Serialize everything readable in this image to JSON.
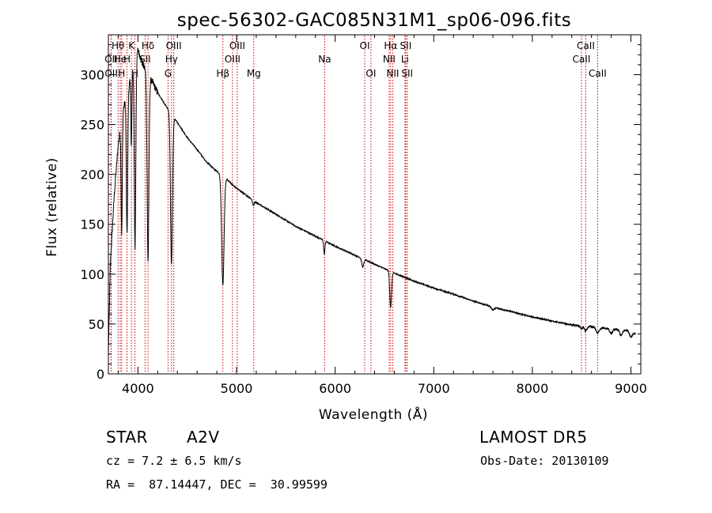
{
  "chart_data": {
    "type": "line",
    "title": "spec-56302-GAC085N31M1_sp06-096.fits",
    "xlabel": "Wavelength (Å)",
    "ylabel": "Flux (relative)",
    "xlim": [
      3700,
      9100
    ],
    "ylim": [
      0,
      340
    ],
    "x_ticks": [
      4000,
      5000,
      6000,
      7000,
      8000,
      9000
    ],
    "x_tick_labels": [
      "4000",
      "5000",
      "6000",
      "7000",
      "8000",
      "9000"
    ],
    "y_ticks": [
      0,
      50,
      100,
      150,
      200,
      250,
      300
    ],
    "y_tick_labels": [
      "0",
      "50",
      "100",
      "150",
      "200",
      "250",
      "300"
    ],
    "grid": false,
    "line_color": "#000000",
    "marker_color": "#cc0000",
    "continuum": {
      "x": [
        3700,
        3720,
        3760,
        3800,
        3850,
        3900,
        3950,
        4000,
        4050,
        4100,
        4150,
        4200,
        4300,
        4400,
        4500,
        4600,
        4700,
        4800,
        4900,
        5000,
        5200,
        5400,
        5600,
        5800,
        6000,
        6200,
        6400,
        6600,
        6800,
        7000,
        7200,
        7400,
        7600,
        7800,
        8000,
        8200,
        8400,
        8600,
        8800,
        9000,
        9050
      ],
      "y": [
        60,
        110,
        180,
        230,
        265,
        285,
        310,
        325,
        310,
        300,
        292,
        282,
        266,
        252,
        237,
        225,
        212,
        203,
        195,
        186,
        172,
        160,
        148,
        138,
        128,
        119,
        110,
        101,
        93,
        86,
        80,
        73,
        67,
        62,
        57,
        53,
        49,
        47,
        45,
        43,
        40
      ]
    },
    "absorption_lines": [
      {
        "x": 3835,
        "depth": 0.45,
        "width": 6
      },
      {
        "x": 3889,
        "depth": 0.5,
        "width": 7
      },
      {
        "x": 3933,
        "depth": 0.25,
        "width": 5
      },
      {
        "x": 3970,
        "depth": 0.6,
        "width": 8
      },
      {
        "x": 4102,
        "depth": 0.62,
        "width": 9
      },
      {
        "x": 4340,
        "depth": 0.58,
        "width": 10
      },
      {
        "x": 4861,
        "depth": 0.55,
        "width": 12
      },
      {
        "x": 5170,
        "depth": 0.03,
        "width": 8
      },
      {
        "x": 5890,
        "depth": 0.1,
        "width": 6
      },
      {
        "x": 6280,
        "depth": 0.07,
        "width": 10
      },
      {
        "x": 6563,
        "depth": 0.35,
        "width": 9
      },
      {
        "x": 7600,
        "depth": 0.04,
        "width": 15
      },
      {
        "x": 8498,
        "depth": 0.06,
        "width": 10
      },
      {
        "x": 8542,
        "depth": 0.1,
        "width": 12
      },
      {
        "x": 8662,
        "depth": 0.12,
        "width": 14
      },
      {
        "x": 8800,
        "depth": 0.1,
        "width": 14
      },
      {
        "x": 8900,
        "depth": 0.12,
        "width": 14
      },
      {
        "x": 9000,
        "depth": 0.14,
        "width": 14
      }
    ],
    "line_markers": [
      {
        "label": "Hθ",
        "x": 3798,
        "row": 0
      },
      {
        "label": "OII",
        "x": 3727,
        "row": 1
      },
      {
        "label": "He",
        "x": 3820,
        "row": 1
      },
      {
        "label": "OII",
        "x": 3729,
        "row": 2
      },
      {
        "label": "H",
        "x": 3835,
        "row": 2
      },
      {
        "label": "K",
        "x": 3934,
        "row": 0
      },
      {
        "label": "H",
        "x": 3889,
        "row": 1
      },
      {
        "label": "H",
        "x": 3969,
        "row": 2
      },
      {
        "label": "Hδ",
        "x": 4102,
        "row": 0
      },
      {
        "label": "SII",
        "x": 4072,
        "row": 1
      },
      {
        "label": "OIII",
        "x": 4363,
        "row": 0
      },
      {
        "label": "Hγ",
        "x": 4340,
        "row": 1
      },
      {
        "label": "G",
        "x": 4305,
        "row": 2
      },
      {
        "label": "OIII",
        "x": 5007,
        "row": 0
      },
      {
        "label": "OIII",
        "x": 4959,
        "row": 1
      },
      {
        "label": "Hβ",
        "x": 4861,
        "row": 2
      },
      {
        "label": "Mg",
        "x": 5175,
        "row": 2
      },
      {
        "label": "Na",
        "x": 5894,
        "row": 1
      },
      {
        "label": "OI",
        "x": 6300,
        "row": 0
      },
      {
        "label": "OI",
        "x": 6363,
        "row": 2
      },
      {
        "label": "Hα",
        "x": 6563,
        "row": 0
      },
      {
        "label": "NII",
        "x": 6548,
        "row": 1
      },
      {
        "label": "NII",
        "x": 6584,
        "row": 2
      },
      {
        "label": "SII",
        "x": 6716,
        "row": 0
      },
      {
        "label": "Li",
        "x": 6708,
        "row": 1
      },
      {
        "label": "SII",
        "x": 6731,
        "row": 2
      },
      {
        "label": "CaII",
        "x": 8542,
        "row": 0
      },
      {
        "label": "CaII",
        "x": 8498,
        "row": 1
      },
      {
        "label": "CaII",
        "x": 8662,
        "row": 2
      }
    ]
  },
  "info": {
    "object_class": "STAR",
    "subclass": "A2V",
    "survey": "LAMOST DR5",
    "cz": "cz = 7.2 ± 6.5 km/s",
    "obs_date": "Obs-Date: 20130109",
    "coords": "RA =  87.14447, DEC =  30.99599"
  }
}
